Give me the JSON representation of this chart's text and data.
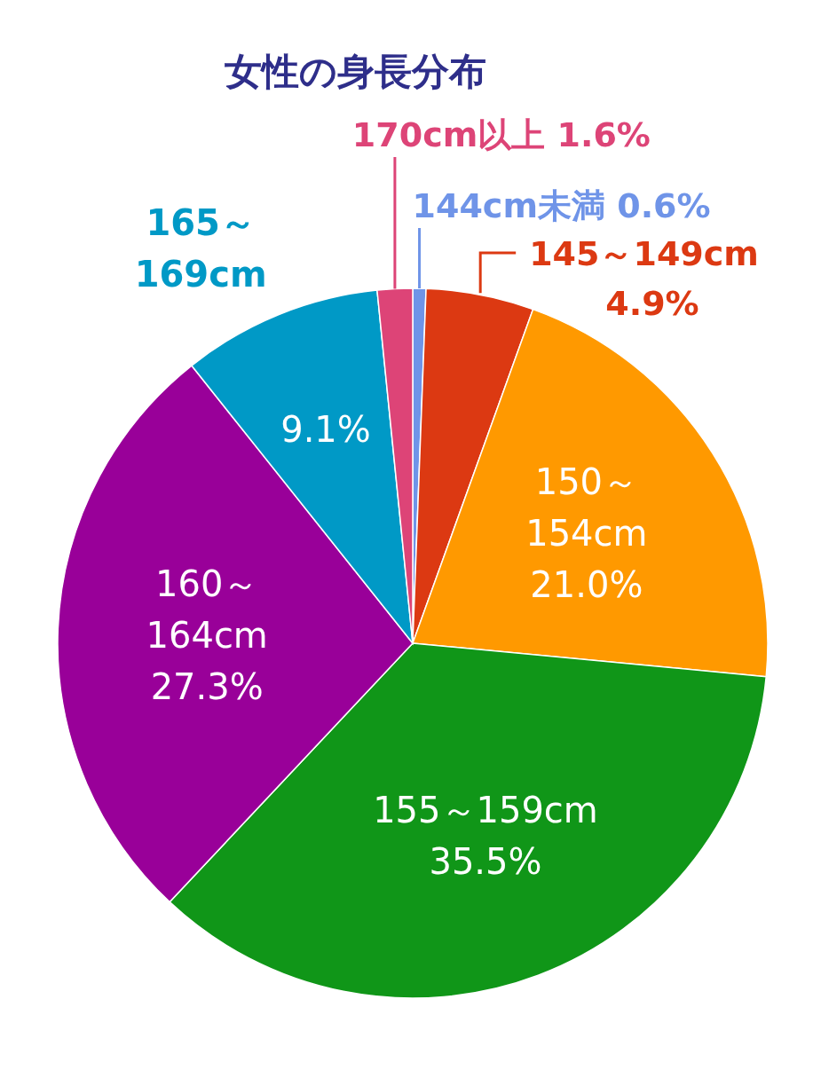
{
  "chart_data": {
    "type": "pie",
    "title": "女性の身長分布",
    "categories": [
      "144cm未満",
      "145～149cm",
      "150～154cm",
      "155～159cm",
      "160～164cm",
      "165～169cm",
      "170cm以上"
    ],
    "values": [
      0.6,
      4.9,
      21.0,
      35.5,
      27.3,
      9.1,
      1.6
    ],
    "value_labels": [
      "0.6%",
      "4.9%",
      "21.0%",
      "35.5%",
      "27.3%",
      "9.1%",
      "1.6%"
    ],
    "colors": [
      "#6f94e8",
      "#dc3912",
      "#ff9900",
      "#109618",
      "#990099",
      "#0099c6",
      "#dd4477"
    ]
  }
}
